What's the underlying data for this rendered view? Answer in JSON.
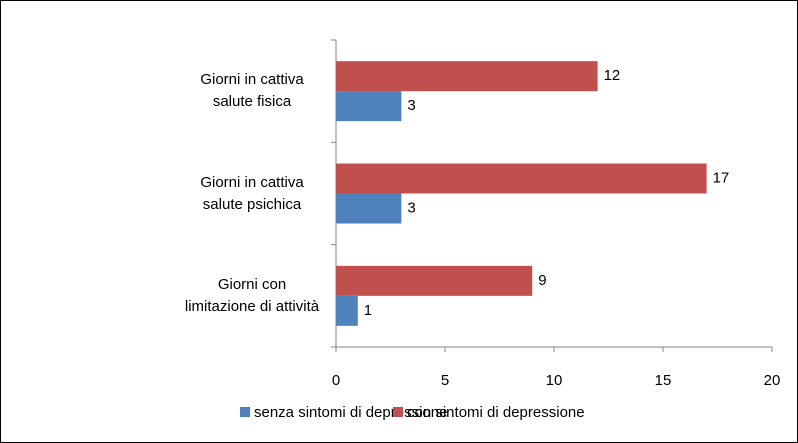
{
  "chart_data": {
    "type": "hbar",
    "categories": [
      "Giorni in cattiva salute fisica",
      "Giorni in cattiva salute psichica",
      "Giorni con limitazione di attività"
    ],
    "series": [
      {
        "name": "senza sintomi di depressione",
        "color": "#4f81bd",
        "values": [
          3,
          3,
          1
        ]
      },
      {
        "name": "con sintomi di depressione",
        "color": "#c0504d",
        "values": [
          12,
          17,
          9
        ]
      }
    ],
    "xlim": [
      0,
      20
    ],
    "xticks": [
      0,
      5,
      10,
      15,
      20
    ],
    "legend": "bottom"
  }
}
